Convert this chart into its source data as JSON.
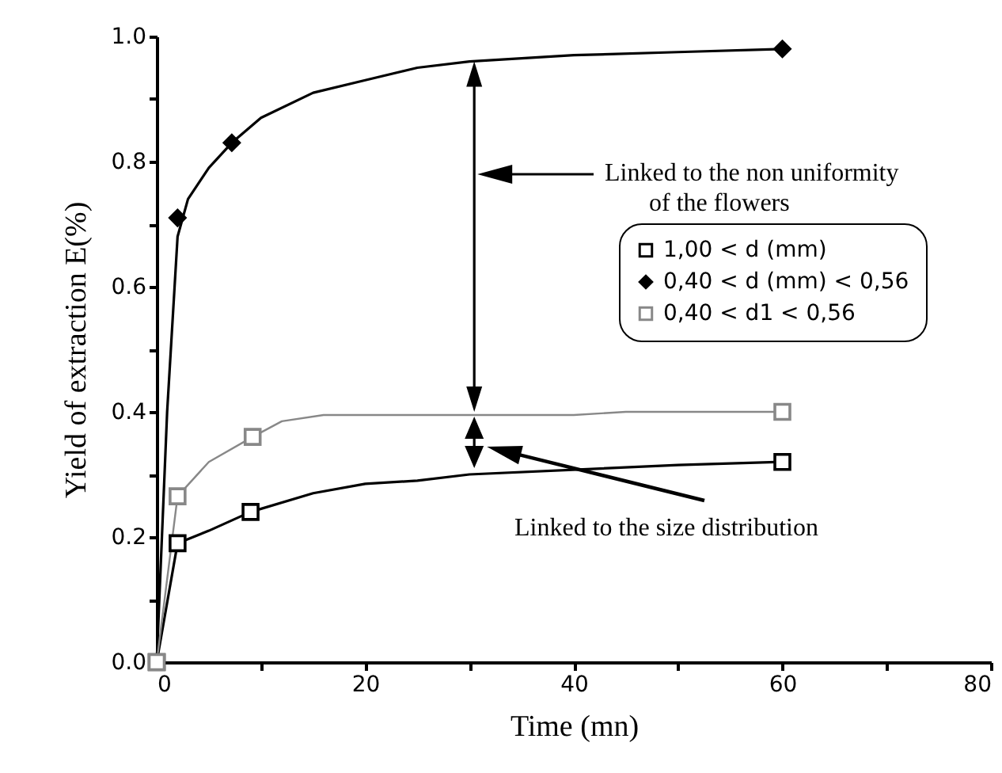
{
  "chart_data": {
    "type": "scatter",
    "xlabel": "Time (mn)",
    "ylabel": "Yield of extraction E(%)",
    "xlim": [
      0,
      80
    ],
    "xticks": [
      0,
      {
        "value": 10,
        "label": null
      },
      20,
      {
        "value": 30,
        "label": null
      },
      40,
      {
        "value": 50,
        "label": null
      },
      60,
      {
        "value": 70,
        "label": null
      },
      80
    ],
    "ylim": [
      0,
      1.0
    ],
    "yticks": [
      {
        "value": 0,
        "label": "0.0"
      },
      {
        "value": 0.1,
        "label": null
      },
      0.2,
      {
        "value": 0.3,
        "label": null
      },
      0.4,
      {
        "value": 0.5,
        "label": null
      },
      0.6,
      {
        "value": 0.7,
        "label": null
      },
      0.8,
      {
        "value": 0.9,
        "label": null
      },
      {
        "value": 1.0,
        "label": "1.0"
      }
    ],
    "legend": "top right",
    "series": [
      {
        "name": "1,00 < d (mm)",
        "color": "#000000",
        "marker": "square",
        "x": [
          0,
          2,
          9,
          60
        ],
        "values": [
          0,
          0.19,
          0.24,
          0.32
        ]
      },
      {
        "name": "0,40 < d (mm) < 0,56",
        "color": "#000000",
        "marker": "diamond",
        "x": [
          2,
          7.2,
          60
        ],
        "values": [
          0.71,
          0.83,
          0.98
        ]
      },
      {
        "name": "0,40 < d1 < 0,56",
        "color": "#888888",
        "marker": "square",
        "x": [
          0,
          2,
          9.2,
          60
        ],
        "values": [
          0,
          0.265,
          0.36,
          0.4
        ]
      },
      {
        "type": "line",
        "color": "#000000",
        "x": [
          0,
          2,
          5,
          9,
          15,
          20,
          25,
          30,
          50,
          60
        ],
        "values": [
          0,
          0.19,
          0.21,
          0.24,
          0.27,
          0.285,
          0.29,
          0.3,
          0.315,
          0.32
        ]
      },
      {
        "type": "line",
        "color": "#000000",
        "x": [
          0,
          1,
          2,
          3,
          5,
          7.2,
          10,
          15,
          20,
          25,
          30,
          40,
          50,
          60
        ],
        "values": [
          0,
          0.4,
          0.68,
          0.74,
          0.79,
          0.83,
          0.87,
          0.91,
          0.93,
          0.95,
          0.96,
          0.97,
          0.975,
          0.98
        ]
      },
      {
        "type": "line",
        "color": "#888888",
        "x": [
          0,
          2,
          5,
          9.2,
          12,
          16,
          30,
          40,
          45,
          60
        ],
        "values": [
          0,
          0.265,
          0.32,
          0.36,
          0.385,
          0.395,
          0.395,
          0.395,
          0.4,
          0.4
        ]
      }
    ],
    "annotations": [
      "Linked to the non uniformity\nof the flowers",
      "Linked to the size distribution"
    ]
  }
}
